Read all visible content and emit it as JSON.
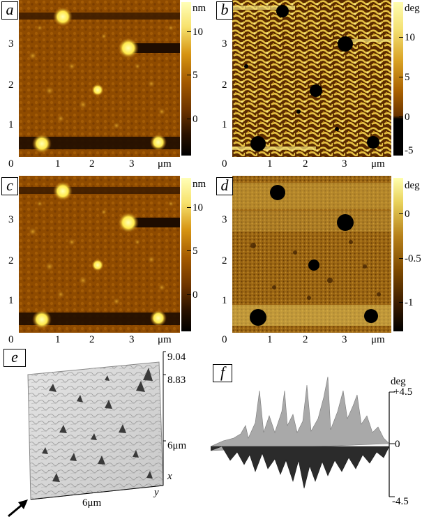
{
  "panels": {
    "a": {
      "label": "a",
      "unit": "nm",
      "x_ticks": [
        "0",
        "1",
        "2",
        "3"
      ],
      "x_unit": "μm",
      "y_ticks": [
        "1",
        "2",
        "3"
      ],
      "colorbar_ticks": [
        "10",
        "5",
        "0"
      ]
    },
    "b": {
      "label": "b",
      "unit": "deg",
      "x_ticks": [
        "0",
        "1",
        "2",
        "3"
      ],
      "x_unit": "μm",
      "y_ticks": [
        "1",
        "2",
        "3"
      ],
      "colorbar_ticks": [
        "10",
        "5",
        "0",
        "-5"
      ]
    },
    "c": {
      "label": "c",
      "unit": "nm",
      "x_ticks": [
        "0",
        "1",
        "2",
        "3"
      ],
      "x_unit": "μm",
      "y_ticks": [
        "1",
        "2",
        "3"
      ],
      "colorbar_ticks": [
        "10",
        "5",
        "0"
      ]
    },
    "d": {
      "label": "d",
      "unit": "deg",
      "x_ticks": [
        "0",
        "1",
        "2",
        "3"
      ],
      "x_unit": "μm",
      "y_ticks": [
        "1",
        "2",
        "3"
      ],
      "colorbar_ticks": [
        "0",
        "-0.5",
        "-1"
      ]
    },
    "e": {
      "label": "e",
      "z_ticks": [
        "9.04",
        "8.83"
      ],
      "axis_extent": "6μm",
      "bottom_extent": "6μm",
      "axis_x": "x",
      "axis_y": "y"
    },
    "f": {
      "label": "f",
      "unit": "deg",
      "z_ticks": [
        "+4.5",
        "0",
        "-4.5"
      ]
    }
  },
  "colors": {
    "map_dark": "#1a0900",
    "map_mid": "#8a4700",
    "map_bright": "#fff176",
    "surface_gray": "#d8d8d8"
  }
}
